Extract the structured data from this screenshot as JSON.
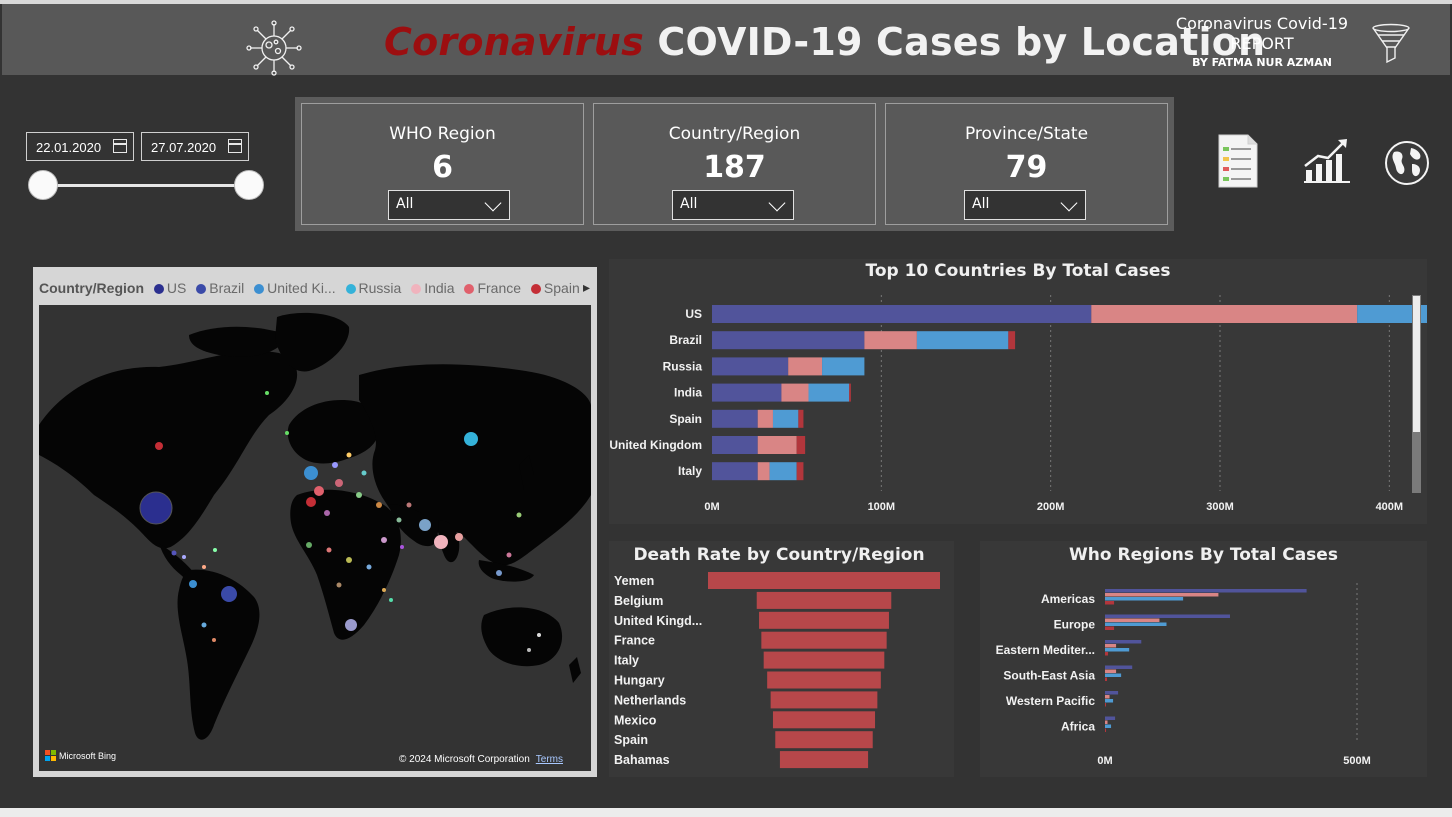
{
  "header": {
    "title_red": "Coronavirus",
    "title_white": "COVID-19 Cases by Location",
    "report_line1": "Coronavirus Covid-19",
    "report_line2": "REPORT",
    "report_line3": "BY FATMA NUR AZMAN",
    "virus_icon": "virus-icon",
    "filter_icon": "funnel-icon"
  },
  "date_slicer": {
    "start": "22.01.2020",
    "end": "27.07.2020"
  },
  "cards": [
    {
      "label": "WHO Region",
      "value": "6",
      "dropdown": "All"
    },
    {
      "label": "Country/Region",
      "value": "187",
      "dropdown": "All"
    },
    {
      "label": "Province/State",
      "value": "79",
      "dropdown": "All"
    }
  ],
  "nav_icons": [
    "report-icon",
    "growth-chart-icon",
    "globe-icon"
  ],
  "map": {
    "legend_title": "Country/Region",
    "legend": [
      {
        "name": "US",
        "color": "#2b2f8f"
      },
      {
        "name": "Brazil",
        "color": "#3a4aa8"
      },
      {
        "name": "United Ki...",
        "color": "#3c8fd1"
      },
      {
        "name": "Russia",
        "color": "#34b2d9"
      },
      {
        "name": "India",
        "color": "#f0b3bd"
      },
      {
        "name": "France",
        "color": "#e0606c"
      },
      {
        "name": "Spain",
        "color": "#c42e36"
      }
    ],
    "bing_label": "Microsoft Bing",
    "copyright": "© 2024 Microsoft Corporation",
    "terms": "Terms"
  },
  "chart_data": [
    {
      "type": "bar",
      "orientation": "horizontal",
      "stacked": true,
      "title": "Top 10 Countries By Total Cases",
      "categories": [
        "US",
        "Brazil",
        "Russia",
        "India",
        "Spain",
        "United Kingdom",
        "Italy"
      ],
      "series": [
        {
          "values": [
            224,
            90,
            45,
            41,
            27,
            27,
            27
          ],
          "color": "#51549b"
        },
        {
          "values": [
            157,
            31,
            20,
            16,
            9,
            23,
            7
          ],
          "color": "#d98585"
        },
        {
          "values": [
            56,
            54,
            25,
            24,
            15,
            0,
            16
          ],
          "color": "#4f9bd3"
        },
        {
          "values": [
            11,
            4,
            0,
            1,
            3,
            5,
            4
          ],
          "color": "#b2363c"
        }
      ],
      "xticks": [
        "0M",
        "100M",
        "200M",
        "300M",
        "400M"
      ],
      "xlim": [
        0,
        450
      ],
      "x_unit": "M",
      "grid": true
    },
    {
      "type": "bar",
      "orientation": "horizontal",
      "style": "funnel",
      "title": "Death Rate by Country/Region",
      "categories": [
        "Yemen",
        "Belgium",
        "United Kingd...",
        "France",
        "Italy",
        "Hungary",
        "Netherlands",
        "Mexico",
        "Spain",
        "Bahamas"
      ],
      "values": [
        100,
        58,
        56,
        54,
        52,
        49,
        46,
        44,
        42,
        38
      ],
      "color": "#b7474a"
    },
    {
      "type": "bar",
      "orientation": "horizontal",
      "grouped": true,
      "title": "Who Regions By Total Cases",
      "categories": [
        "Americas",
        "Europe",
        "Eastern Mediter...",
        "South-East Asia",
        "Western Pacific",
        "Africa"
      ],
      "series": [
        {
          "values": [
            400,
            248,
            72,
            54,
            26,
            20
          ],
          "color": "#51549b"
        },
        {
          "values": [
            225,
            108,
            22,
            22,
            9,
            5
          ],
          "color": "#d98585"
        },
        {
          "values": [
            155,
            122,
            48,
            32,
            16,
            12
          ],
          "color": "#4f9bd3"
        },
        {
          "values": [
            18,
            18,
            6,
            4,
            2,
            2
          ],
          "color": "#b2363c"
        }
      ],
      "xticks": [
        "0M",
        "500M"
      ],
      "xlim": [
        0,
        500
      ],
      "x_unit": "M",
      "grid": true
    }
  ]
}
